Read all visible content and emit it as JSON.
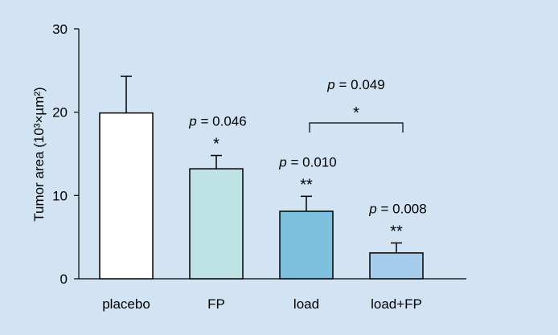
{
  "chart_data": {
    "type": "bar",
    "categories": [
      "placebo",
      "FP",
      "load",
      "load+FP"
    ],
    "values": [
      19.9,
      13.2,
      8.1,
      3.1
    ],
    "errors": [
      4.4,
      1.6,
      1.8,
      1.2
    ],
    "bar_colors": [
      "#ffffff",
      "#bfe3e4",
      "#7cc0dd",
      "#a6cdec"
    ],
    "ylabel": "Tumor area (10³×µm²)",
    "ylim": [
      0,
      30
    ],
    "yticks": [
      0,
      10,
      20,
      30
    ],
    "annotations": [
      {
        "category_index": 1,
        "p_value": "= 0.046",
        "stars": "*"
      },
      {
        "category_index": 2,
        "p_value": "= 0.010",
        "stars": "**"
      },
      {
        "category_index": 3,
        "p_value": "= 0.008",
        "stars": "**"
      }
    ],
    "comparison": {
      "from_index": 2,
      "to_index": 3,
      "p_value": "= 0.049",
      "stars": "*"
    },
    "p_symbol": "p",
    "grid": false,
    "legend": "none"
  }
}
